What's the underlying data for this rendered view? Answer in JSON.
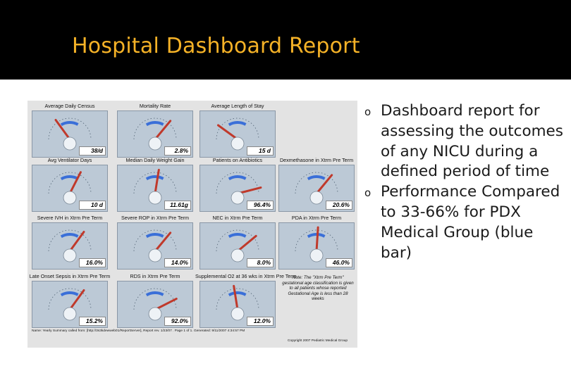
{
  "slide": {
    "title": "Hospital Dashboard Report",
    "title_color": "#f5b227",
    "bullet_marker": "o",
    "bullets": [
      {
        "text": "Dashboard report for assessing the outcomes of any NICU during a defined period of time"
      },
      {
        "text": "Performance Compared to 33-66% for PDX Medical Group (blue bar)"
      }
    ]
  },
  "dashboard": {
    "colors": {
      "panel": "#bcc9d6",
      "blue_bar": "#3a6fd8",
      "needle": "#c0392b"
    },
    "gauges": [
      {
        "title": "Average Daily Census",
        "value": "38/d",
        "level": 0.3
      },
      {
        "title": "Mortality Rate",
        "value": "2.8%",
        "level": 0.72
      },
      {
        "title": "Average Length of Stay",
        "value": "15 d",
        "level": 0.2
      },
      {
        "title": "Avg Ventilator Days",
        "value": "10 d",
        "level": 0.65
      },
      {
        "title": "Median Daily Weight Gain",
        "value": "11.61g",
        "level": 0.55
      },
      {
        "title": "Patients on Antibiotics",
        "value": "96.4%",
        "level": 0.92
      },
      {
        "title": "Dexmethasone in Xtrm Pre Term",
        "value": "20.6%",
        "level": 0.72
      },
      {
        "title": "Severe IVH in Xtrm Pre Term",
        "value": "16.0%",
        "level": 0.7
      },
      {
        "title": "Severe ROP in Xtrm Pre Term",
        "value": "14.0%",
        "level": 0.72
      },
      {
        "title": "NEC in Xtrm Pre Term",
        "value": "8.0%",
        "level": 0.78
      },
      {
        "title": "PDA in Xtrm Pre Term",
        "value": "46.0%",
        "level": 0.52
      },
      {
        "title": "Late Onset Sepsis in Xtrm Pre Term",
        "value": "15.2%",
        "level": 0.7
      },
      {
        "title": "RDS in Xtrm Pre Term",
        "value": "92.0%",
        "level": 0.85
      },
      {
        "title": "Supplemental O2 at 36 wks in Xtrm Pre Term",
        "value": "12.0%",
        "level": 0.45
      }
    ],
    "note": "Note: The \"Xtrm Pre Term\" gestational age classification is given to all patients whose reported Gestational Age is less than 28 weeks",
    "footer_left": "Name: Yearly Summary called from: [http://3s3kdewweb01/ReportServer], Report rev. 1/23/07 . Page 1 of 1. Generated: 9/11/2007 4:34:57 PM",
    "footer_right": "Copyright 2007 Pediatric Medical Group"
  }
}
